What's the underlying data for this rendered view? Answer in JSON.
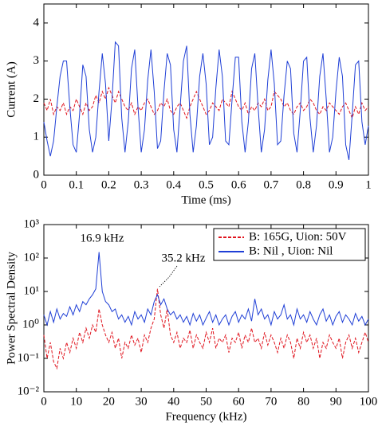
{
  "chart_data": [
    {
      "type": "line",
      "xlabel": "Time  (ms)",
      "ylabel": "Current (A)",
      "x": [
        0,
        0.01,
        0.02,
        0.03,
        0.04,
        0.05,
        0.06,
        0.07,
        0.08,
        0.09,
        0.1,
        0.11,
        0.12,
        0.13,
        0.14,
        0.15,
        0.16,
        0.17,
        0.18,
        0.19,
        0.2,
        0.21,
        0.22,
        0.23,
        0.24,
        0.25,
        0.26,
        0.27,
        0.28,
        0.29,
        0.3,
        0.31,
        0.32,
        0.33,
        0.34,
        0.35,
        0.36,
        0.37,
        0.38,
        0.39,
        0.4,
        0.41,
        0.42,
        0.43,
        0.44,
        0.45,
        0.46,
        0.47,
        0.48,
        0.49,
        0.5,
        0.51,
        0.52,
        0.53,
        0.54,
        0.55,
        0.56,
        0.57,
        0.58,
        0.59,
        0.6,
        0.61,
        0.62,
        0.63,
        0.64,
        0.65,
        0.66,
        0.67,
        0.68,
        0.69,
        0.7,
        0.71,
        0.72,
        0.73,
        0.74,
        0.75,
        0.76,
        0.77,
        0.78,
        0.79,
        0.8,
        0.81,
        0.82,
        0.83,
        0.84,
        0.85,
        0.86,
        0.87,
        0.88,
        0.89,
        0.9,
        0.91,
        0.92,
        0.93,
        0.94,
        0.95,
        0.96,
        0.97,
        0.98,
        0.99,
        1
      ],
      "series": [
        {
          "color": "#e0141e",
          "linestyle": "dashed",
          "values": [
            1.9,
            1.7,
            2.0,
            1.6,
            1.8,
            1.7,
            1.9,
            1.6,
            1.8,
            1.7,
            2.0,
            1.8,
            1.6,
            1.9,
            1.7,
            1.8,
            2.1,
            1.9,
            2.2,
            2.0,
            2.3,
            2.1,
            1.9,
            2.2,
            2.0,
            1.8,
            1.7,
            1.9,
            1.6,
            1.8,
            1.7,
            1.9,
            2.0,
            1.8,
            1.6,
            1.7,
            1.9,
            1.8,
            2.0,
            1.7,
            1.6,
            1.8,
            1.9,
            1.7,
            1.5,
            1.8,
            2.0,
            2.2,
            2.0,
            1.8,
            1.6,
            1.7,
            1.9,
            1.8,
            1.7,
            2.0,
            1.9,
            1.8,
            2.2,
            2.0,
            1.8,
            1.7,
            1.9,
            1.6,
            1.8,
            1.7,
            1.9,
            1.8,
            2.0,
            1.7,
            1.8,
            2.2,
            2.1,
            2.0,
            1.8,
            1.9,
            1.7,
            1.6,
            1.8,
            1.9,
            1.7,
            1.8,
            2.0,
            1.9,
            1.7,
            1.6,
            1.8,
            1.7,
            1.9,
            1.8,
            1.7,
            1.6,
            1.8,
            1.9,
            1.7,
            1.5,
            1.8,
            1.6,
            1.9,
            1.7,
            1.8
          ]
        },
        {
          "color": "#1f3fd6",
          "linestyle": "solid",
          "values": [
            1.4,
            0.9,
            0.5,
            0.9,
            1.8,
            2.6,
            3.0,
            3.0,
            1.8,
            0.8,
            0.6,
            1.6,
            2.9,
            2.6,
            1.2,
            0.6,
            1.0,
            2.2,
            3.2,
            2.4,
            0.9,
            2.0,
            3.5,
            3.4,
            1.5,
            0.6,
            1.4,
            2.8,
            3.3,
            1.8,
            0.6,
            1.2,
            2.5,
            3.3,
            2.2,
            0.7,
            0.9,
            2.2,
            3.2,
            2.9,
            1.2,
            0.6,
            1.8,
            3.0,
            3.4,
            1.6,
            0.6,
            1.3,
            2.6,
            3.2,
            2.4,
            0.8,
            1.0,
            2.3,
            3.3,
            2.6,
            0.9,
            0.8,
            2.0,
            3.1,
            3.1,
            1.4,
            0.6,
            1.4,
            2.8,
            3.2,
            1.8,
            0.6,
            1.2,
            2.5,
            3.3,
            2.4,
            0.8,
            0.9,
            2.1,
            3.0,
            2.8,
            1.1,
            0.6,
            1.7,
            3.0,
            3.1,
            1.5,
            0.6,
            1.3,
            2.6,
            3.2,
            2.0,
            0.6,
            1.0,
            2.2,
            3.1,
            2.6,
            0.8,
            0.4,
            1.6,
            2.9,
            3.0,
            1.4,
            0.8,
            1.3
          ]
        }
      ],
      "xlim": [
        0,
        1
      ],
      "xticks": [
        0,
        0.1,
        0.2,
        0.3,
        0.4,
        0.5,
        0.6,
        0.7,
        0.8,
        0.9,
        1
      ],
      "ylim": [
        0,
        4.5
      ],
      "yticks": [
        0,
        1,
        2,
        3,
        4
      ],
      "grid": false
    },
    {
      "type": "line",
      "xlabel": "Frequency (kHz)",
      "ylabel": "Power Spectral Density",
      "log_y": true,
      "annotations": [
        "16.9 kHz",
        "35.2 kHz"
      ],
      "legend": "upper right",
      "x": [
        0,
        1,
        2,
        3,
        4,
        5,
        6,
        7,
        8,
        9,
        10,
        11,
        12,
        13,
        14,
        15,
        16,
        17,
        18,
        19,
        20,
        21,
        22,
        23,
        24,
        25,
        26,
        27,
        28,
        29,
        30,
        31,
        32,
        33,
        34,
        35,
        36,
        37,
        38,
        39,
        40,
        41,
        42,
        43,
        44,
        45,
        46,
        47,
        48,
        49,
        50,
        51,
        52,
        53,
        54,
        55,
        56,
        57,
        58,
        59,
        60,
        61,
        62,
        63,
        64,
        65,
        66,
        67,
        68,
        69,
        70,
        71,
        72,
        73,
        74,
        75,
        76,
        77,
        78,
        79,
        80,
        81,
        82,
        83,
        84,
        85,
        86,
        87,
        88,
        89,
        90,
        91,
        92,
        93,
        94,
        95,
        96,
        97,
        98,
        99,
        100
      ],
      "series": [
        {
          "name": "B: 165G, Uion: 50V",
          "color": "#e0141e",
          "linestyle": "dashed",
          "values": [
            0.5,
            0.1,
            0.3,
            0.08,
            0.05,
            0.2,
            0.1,
            0.3,
            0.15,
            0.4,
            0.2,
            0.6,
            0.3,
            0.8,
            0.4,
            1.0,
            0.6,
            3.0,
            1.0,
            0.5,
            0.3,
            0.6,
            0.2,
            0.4,
            0.1,
            0.3,
            0.2,
            0.5,
            0.25,
            0.4,
            0.15,
            0.5,
            0.3,
            0.8,
            1.5,
            12,
            2.0,
            0.8,
            3.0,
            0.5,
            0.3,
            0.6,
            0.2,
            0.4,
            0.3,
            0.7,
            0.2,
            0.5,
            0.3,
            0.2,
            0.6,
            0.3,
            0.8,
            0.2,
            0.4,
            0.3,
            0.5,
            0.15,
            0.4,
            0.3,
            0.6,
            0.2,
            0.5,
            0.3,
            0.8,
            0.3,
            0.4,
            0.2,
            0.6,
            0.25,
            0.5,
            0.3,
            0.15,
            0.4,
            0.2,
            0.5,
            0.3,
            0.1,
            0.4,
            0.2,
            0.6,
            0.3,
            0.5,
            0.2,
            0.4,
            0.1,
            0.3,
            0.2,
            0.5,
            0.3,
            0.2,
            0.4,
            0.1,
            0.3,
            0.5,
            0.2,
            0.4,
            0.15,
            0.3,
            0.6,
            0.3
          ]
        },
        {
          "name": "B: Nil    , Uion: Nil",
          "color": "#1f3fd6",
          "linestyle": "solid",
          "values": [
            2.0,
            1.0,
            2.5,
            1.2,
            3.0,
            1.5,
            2.2,
            1.8,
            3.5,
            2.0,
            4.0,
            2.5,
            5.0,
            4.0,
            6.0,
            8.0,
            12,
            150,
            10,
            5.0,
            4.0,
            2.5,
            3.0,
            1.5,
            2.0,
            1.2,
            1.8,
            1.0,
            2.5,
            1.5,
            2.0,
            1.2,
            3.0,
            2.0,
            5.0,
            8.0,
            4.0,
            6.0,
            3.0,
            2.0,
            2.5,
            1.5,
            2.0,
            1.2,
            1.8,
            1.0,
            2.2,
            1.3,
            2.0,
            1.0,
            1.6,
            2.5,
            1.2,
            2.0,
            1.0,
            1.5,
            2.0,
            1.0,
            1.8,
            2.5,
            1.2,
            2.0,
            1.5,
            3.0,
            1.3,
            6.0,
            2.0,
            3.0,
            1.5,
            2.0,
            1.0,
            2.5,
            1.5,
            2.0,
            4.0,
            1.5,
            2.0,
            1.0,
            3.0,
            1.5,
            2.0,
            1.2,
            2.5,
            1.5,
            1.0,
            2.0,
            3.0,
            1.3,
            2.0,
            1.0,
            1.8,
            2.5,
            1.2,
            2.0,
            1.5,
            1.0,
            2.2,
            1.3,
            1.8,
            1.0,
            1.5
          ]
        }
      ],
      "xlim": [
        0,
        100
      ],
      "xticks": [
        0,
        10,
        20,
        30,
        40,
        50,
        60,
        70,
        80,
        90,
        100
      ],
      "ylim": [
        0.01,
        1000
      ],
      "yticks": [
        {
          "value": 0.01,
          "label": "10⁻²"
        },
        {
          "value": 0.1,
          "label": "10⁻¹"
        },
        {
          "value": 1,
          "label": "10⁰"
        },
        {
          "value": 10,
          "label": "10¹"
        },
        {
          "value": 100,
          "label": "10²"
        },
        {
          "value": 1000,
          "label": "10³"
        }
      ],
      "grid": false
    }
  ]
}
